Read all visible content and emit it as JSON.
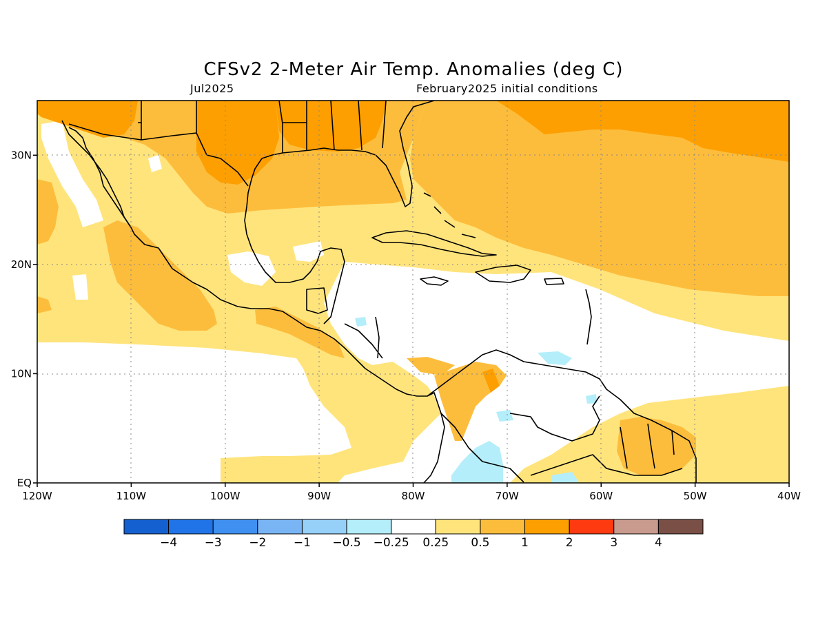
{
  "title": "CFSv2 2-Meter Air Temp. Anomalies (deg C)",
  "valid_month": "Jul2025",
  "init_conditions": "February2025 initial conditions",
  "map": {
    "lon_range": [
      "120W",
      "40W"
    ],
    "lat_range": [
      "EQ",
      "35N"
    ],
    "lon_ticks": [
      "120W",
      "110W",
      "100W",
      "90W",
      "80W",
      "70W",
      "60W",
      "50W",
      "40W"
    ],
    "lat_ticks": [
      "EQ",
      "10N",
      "20N",
      "30N"
    ],
    "gridlines": "dotted",
    "region": "Central America, Caribbean, Gulf of Mexico, northern South America"
  },
  "colorbar": {
    "colors": [
      "#1560d0",
      "#2173e8",
      "#3f90f0",
      "#79b5f5",
      "#96d0f8",
      "#b4eefa",
      "#ffffff",
      "#ffe47c",
      "#fdbd3c",
      "#fd9f00",
      "#fd3a10",
      "#c89b8e",
      "#7a4f45"
    ],
    "labels": [
      "−4",
      "−3",
      "−2",
      "−1",
      "−0.5",
      "−0.25",
      "0.25",
      "0.5",
      "1",
      "2",
      "3",
      "4"
    ]
  },
  "anomaly_classes": {
    "near_zero": "#ffffff",
    "weak_positive": "#ffe47c",
    "moderate_positive": "#fdbd3c",
    "strong_positive": "#fd9f00",
    "weak_negative": "#b4eefa"
  }
}
